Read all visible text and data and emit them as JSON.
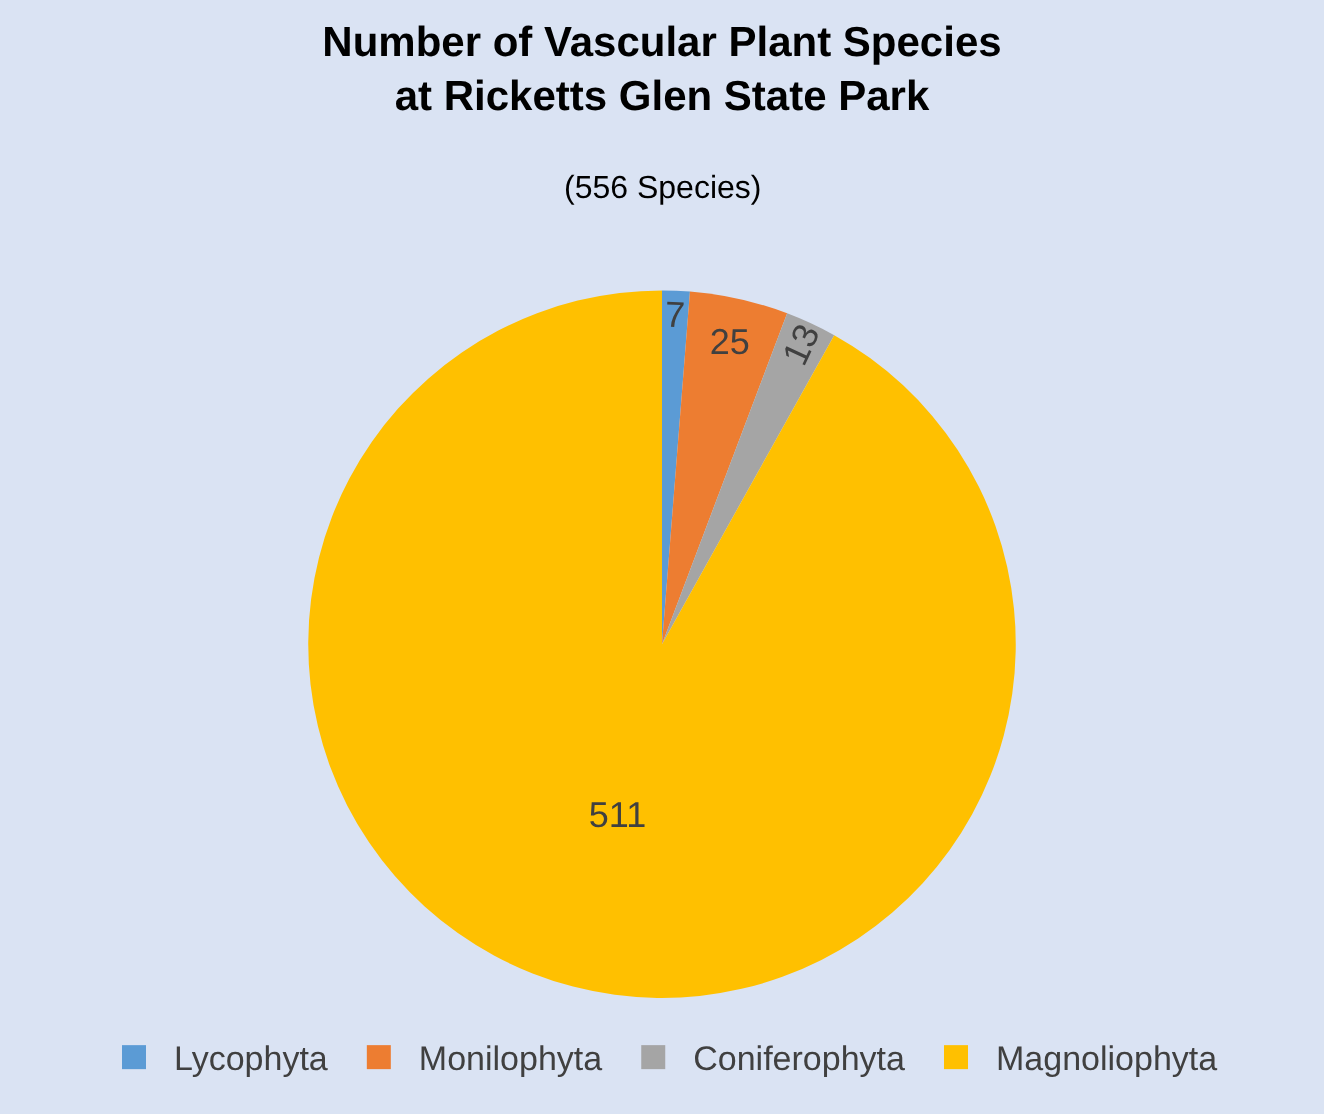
{
  "chart_data": {
    "type": "pie",
    "title": "Number of Vascular Plant Species at Ricketts Glen State Park",
    "subtitle": "(556 Species)",
    "categories": [
      "Lycophyta",
      "Monilophyta",
      "Coniferophyta",
      "Magnoliophyta"
    ],
    "values": [
      7,
      25,
      13,
      511
    ],
    "colors": [
      "#5b9bd5",
      "#ed7d31",
      "#a5a5a5",
      "#ffc000"
    ],
    "data_labels": true,
    "legend": "bottom"
  }
}
